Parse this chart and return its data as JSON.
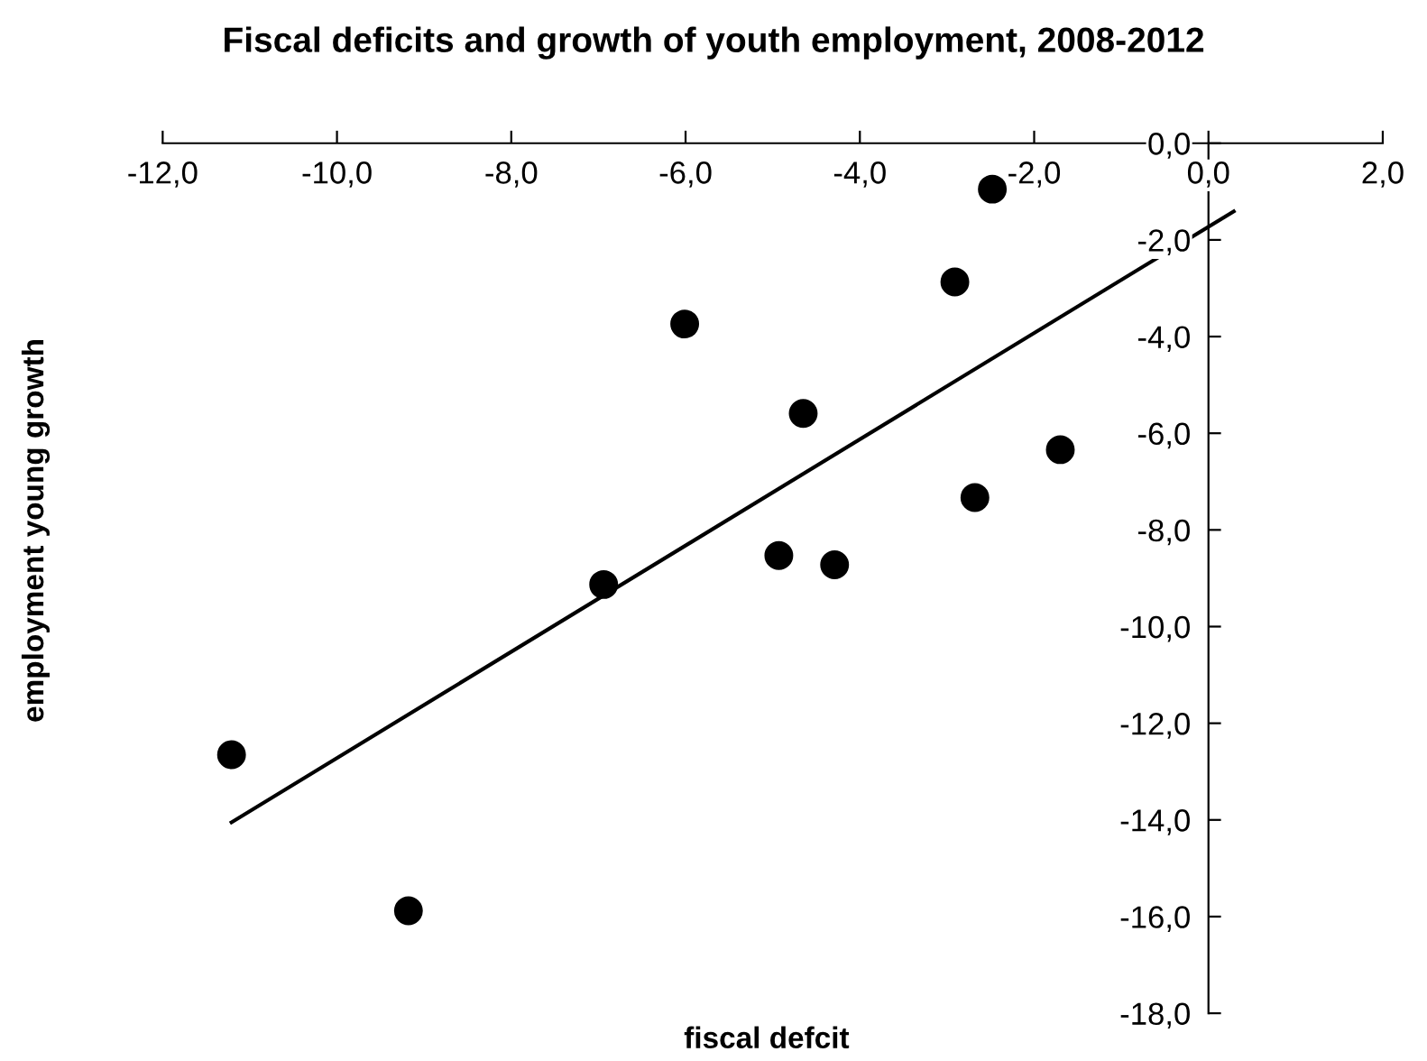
{
  "chart_data": {
    "type": "scatter",
    "title": "Fiscal deficits and growth of youth employment, 2008-2012",
    "xlabel": "fiscal defcit",
    "ylabel": "employment young growth",
    "series": [
      {
        "color": "#000000",
        "marker": "circle",
        "x": [
          -2.48,
          -2.91,
          -6.01,
          -4.65,
          -1.7,
          -2.68,
          -4.93,
          -4.29,
          -6.94,
          -11.21,
          -9.18
        ],
        "values": [
          -0.95,
          -2.87,
          -3.74,
          -5.59,
          -6.34,
          -7.33,
          -8.53,
          -8.72,
          -9.13,
          -12.65,
          -15.88
        ]
      },
      {
        "type": "line",
        "color": "#000000",
        "marker": "none",
        "line_style": "solid",
        "x": [
          -11.21,
          0.29
        ],
        "values": [
          -14.05,
          -1.41
        ]
      }
    ],
    "xlim": [
      -12,
      2
    ],
    "ylim": [
      -18,
      0
    ],
    "xticks": [
      {
        "value": -12,
        "label": "-12,0"
      },
      {
        "value": -10,
        "label": "-10,0"
      },
      {
        "value": -8,
        "label": "-8,0"
      },
      {
        "value": -6,
        "label": "-6,0"
      },
      {
        "value": -4,
        "label": "-4,0"
      },
      {
        "value": -2,
        "label": "-2,0"
      },
      {
        "value": 0,
        "label": "0,0"
      },
      {
        "value": 2,
        "label": "2,0"
      }
    ],
    "yticks": [
      {
        "value": -18,
        "label": "-18,0"
      },
      {
        "value": -16,
        "label": "-16,0"
      },
      {
        "value": -14,
        "label": "-14,0"
      },
      {
        "value": -12,
        "label": "-12,0"
      },
      {
        "value": -10,
        "label": "-10,0"
      },
      {
        "value": -8,
        "label": "-8,0"
      },
      {
        "value": -6,
        "label": "-6,0"
      },
      {
        "value": -4,
        "label": "-4,0"
      },
      {
        "value": -2,
        "label": "-2,0"
      },
      {
        "value": 0,
        "label": "0,0"
      }
    ],
    "grid": false,
    "legend": false
  }
}
